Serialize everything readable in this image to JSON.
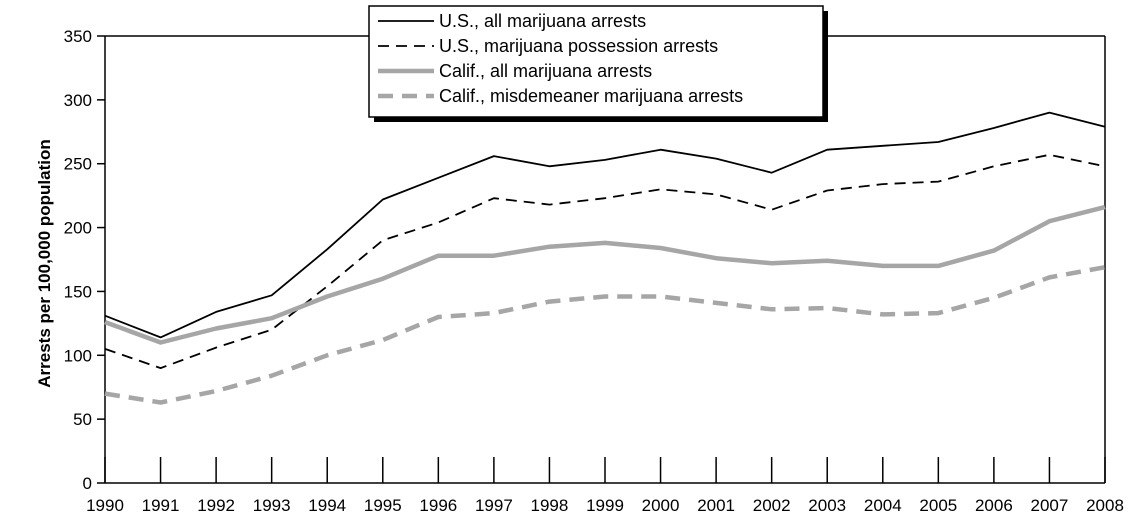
{
  "chart_data": {
    "type": "line",
    "title": "",
    "xlabel": "",
    "ylabel": "Arrests per 100,000 population",
    "x": [
      "1990",
      "1991",
      "1992",
      "1993",
      "1994",
      "1995",
      "1996",
      "1997",
      "1998",
      "1999",
      "2000",
      "2001",
      "2002",
      "2003",
      "2004",
      "2005",
      "2006",
      "2007",
      "2008"
    ],
    "ylim": [
      0,
      350
    ],
    "yticks": [
      0,
      50,
      100,
      150,
      200,
      250,
      300,
      350
    ],
    "grid": false,
    "legend_position": "top-center",
    "series": [
      {
        "name": "U.S., all marijuana arrests",
        "color": "#000000",
        "style": "solid",
        "values": [
          131,
          114,
          134,
          147,
          183,
          222,
          239,
          256,
          248,
          253,
          261,
          254,
          243,
          261,
          264,
          267,
          278,
          290,
          279
        ]
      },
      {
        "name": "U.S., marijuana possession arrests",
        "color": "#000000",
        "style": "dashed",
        "values": [
          105,
          90,
          106,
          120,
          154,
          190,
          204,
          223,
          218,
          223,
          230,
          226,
          214,
          229,
          234,
          236,
          248,
          257,
          248
        ]
      },
      {
        "name": "Calif., all marijuana arrests",
        "color": "#a6a6a6",
        "style": "solid-thick",
        "values": [
          126,
          110,
          121,
          129,
          146,
          160,
          178,
          178,
          185,
          188,
          184,
          176,
          172,
          174,
          170,
          170,
          182,
          205,
          216
        ]
      },
      {
        "name": "Calif., misdemeaner marijuana arrests",
        "color": "#a6a6a6",
        "style": "dashed-thick",
        "values": [
          70,
          63,
          72,
          84,
          100,
          112,
          130,
          133,
          142,
          146,
          146,
          141,
          136,
          137,
          132,
          133,
          145,
          161,
          169
        ]
      }
    ]
  }
}
